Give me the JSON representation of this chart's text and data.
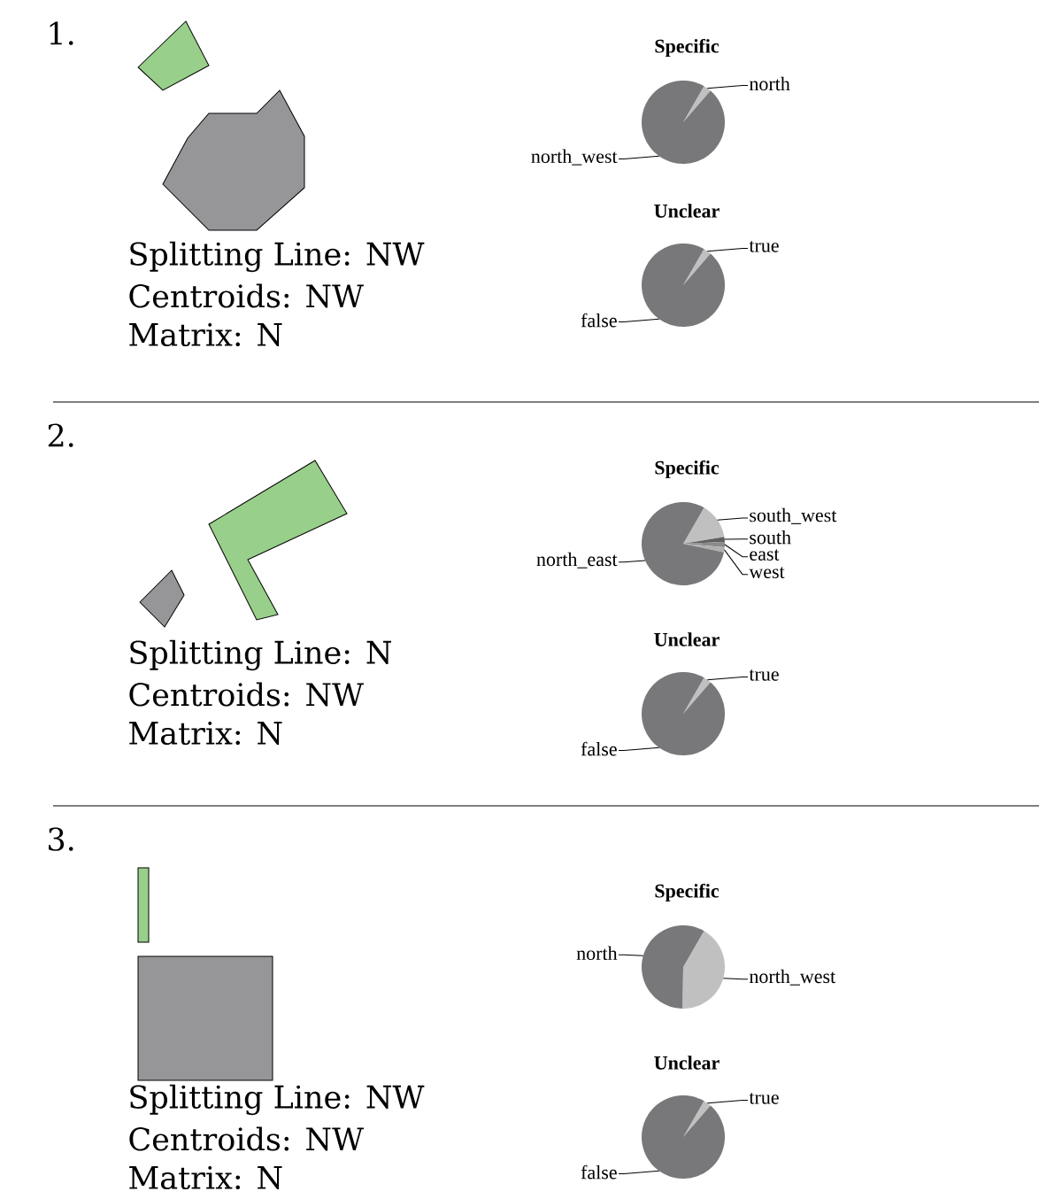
{
  "chart_data": [
    {
      "type": "other",
      "title": "1.",
      "annotations": [
        "Splitting Line: NW",
        "Centroids: NW",
        "Matrix: N"
      ]
    },
    {
      "type": "pie",
      "title": "Specific",
      "categories": [
        "north",
        "north_west"
      ],
      "values": [
        3,
        97
      ],
      "colors": [
        "#c0c0c0",
        "#78787a"
      ]
    },
    {
      "type": "pie",
      "title": "Unclear",
      "categories": [
        "true",
        "false"
      ],
      "values": [
        3,
        97
      ],
      "colors": [
        "#c0c0c0",
        "#78787a"
      ]
    },
    {
      "type": "other",
      "title": "2.",
      "annotations": [
        "Splitting Line: N",
        "Centroids: NW",
        "Matrix: N"
      ]
    },
    {
      "type": "pie",
      "title": "Specific",
      "categories": [
        "south_west",
        "south",
        "east",
        "west",
        "north_east"
      ],
      "values": [
        14,
        2,
        2,
        2,
        80
      ],
      "colors": [
        "#c0c0c0",
        "#606062",
        "#8a8a8c",
        "#b0b0b0",
        "#78787a"
      ]
    },
    {
      "type": "pie",
      "title": "Unclear",
      "categories": [
        "true",
        "false"
      ],
      "values": [
        3,
        97
      ],
      "colors": [
        "#c0c0c0",
        "#78787a"
      ]
    },
    {
      "type": "other",
      "title": "3.",
      "annotations": [
        "Splitting Line: NW",
        "Centroids: NW",
        "Matrix: N"
      ]
    },
    {
      "type": "pie",
      "title": "Specific",
      "categories": [
        "north_west",
        "north"
      ],
      "values": [
        42,
        58
      ],
      "colors": [
        "#c0c0c0",
        "#78787a"
      ]
    },
    {
      "type": "pie",
      "title": "Unclear",
      "categories": [
        "true",
        "false"
      ],
      "values": [
        3,
        97
      ],
      "colors": [
        "#c0c0c0",
        "#78787a"
      ]
    }
  ]
}
